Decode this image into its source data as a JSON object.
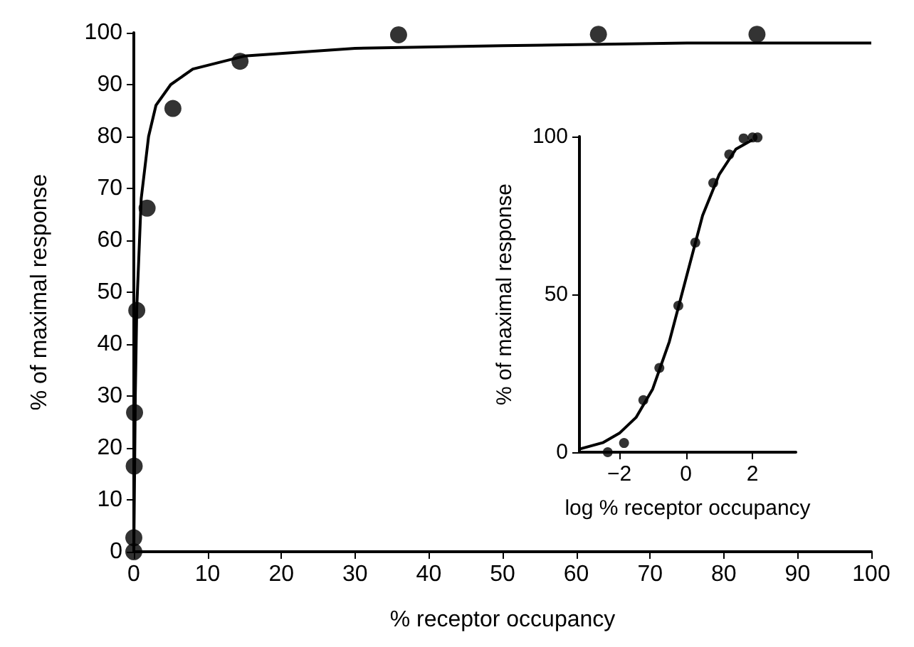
{
  "chart_data": [
    {
      "type": "scatter",
      "xlabel": "% receptor occupancy",
      "ylabel": "% of maximal response",
      "xlim": [
        0,
        100
      ],
      "ylim": [
        0,
        100
      ],
      "xticks": [
        0,
        10,
        20,
        30,
        40,
        50,
        60,
        70,
        80,
        90,
        100
      ],
      "yticks": [
        0,
        10,
        20,
        30,
        40,
        50,
        60,
        70,
        80,
        90,
        100
      ],
      "grid": false,
      "series": [
        {
          "type": "line",
          "color": "#000000",
          "marker": "none",
          "x": [
            0,
            0.2,
            0.4,
            1,
            2,
            3,
            5,
            8,
            15,
            30,
            50,
            75,
            100
          ],
          "values": [
            0,
            30,
            47,
            68,
            80,
            86,
            90,
            93,
            95.5,
            97,
            97.5,
            98,
            98
          ]
        },
        {
          "color": "#000000",
          "marker": "circle",
          "x": [
            0,
            0,
            0.05,
            0.1,
            0.4,
            1.8,
            5.3,
            14.4,
            35.9,
            63,
            84.5
          ],
          "values": [
            0,
            2.7,
            16.5,
            26.8,
            46.5,
            66.2,
            85.4,
            94.5,
            99.6,
            99.7,
            99.7
          ]
        }
      ]
    },
    {
      "type": "scatter",
      "xlabel": "log % receptor occupancy",
      "ylabel": "% of maximal response",
      "xlim": [
        -3.2,
        3.3
      ],
      "ylim": [
        0,
        100
      ],
      "xticks": [
        -2,
        0,
        2
      ],
      "yticks": [
        0,
        50,
        100
      ],
      "grid": false,
      "series": [
        {
          "type": "line",
          "color": "#000000",
          "marker": "none",
          "x": [
            -3.2,
            -2.5,
            -2,
            -1.5,
            -1,
            -0.5,
            0,
            0.5,
            1,
            1.5,
            2
          ],
          "values": [
            1,
            3,
            6,
            11,
            20,
            35,
            55,
            75,
            88,
            96,
            99
          ]
        },
        {
          "color": "#000000",
          "marker": "circle",
          "x": [
            -2.35,
            -1.86,
            -1.28,
            -0.8,
            -0.23,
            0.28,
            0.82,
            1.3,
            1.73,
            2.0,
            2.15
          ],
          "values": [
            0,
            2.9,
            16.5,
            26.7,
            46.4,
            66.4,
            85.3,
            94.3,
            99.4,
            99.7,
            99.7
          ]
        }
      ]
    }
  ]
}
